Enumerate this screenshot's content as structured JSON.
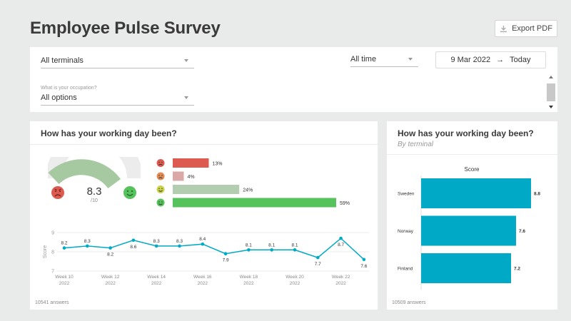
{
  "page": {
    "title": "Employee Pulse Survey",
    "export_label": "Export PDF"
  },
  "filters": {
    "terminal": {
      "value": "All terminals"
    },
    "period": {
      "value": "All time"
    },
    "date_range": {
      "from": "9 Mar 2022",
      "arrow": "→",
      "to": "Today"
    },
    "occupation": {
      "label": "What is your occupation?",
      "value": "All options"
    }
  },
  "colors": {
    "accent": "#00aac6",
    "gauge": "#a7c9a2",
    "very_bad": "#dc5a4f",
    "bad": "#dba8a8",
    "good": "#b3cdb1",
    "very_good": "#56c25b"
  },
  "left_card": {
    "title": "How has your working day been?",
    "gauge": {
      "score": "8.3",
      "max_label": "/10",
      "score_value": 8.3,
      "max_value": 10
    },
    "distribution": [
      {
        "icon": "very-unhappy-face-icon",
        "label": "13%",
        "percent": 13,
        "color": "#dc5a4f"
      },
      {
        "icon": "unhappy-face-icon",
        "label": "4%",
        "percent": 4,
        "color": "#dba8a8"
      },
      {
        "icon": "happy-face-icon",
        "label": "24%",
        "percent": 24,
        "color": "#b3cdb1"
      },
      {
        "icon": "very-happy-face-icon",
        "label": "59%",
        "percent": 59,
        "color": "#56c25b"
      }
    ],
    "answers": "10541 answers"
  },
  "right_card": {
    "title": "How has your working day been?",
    "subtitle": "By terminal",
    "answers": "10509 answers"
  },
  "chart_data": [
    {
      "type": "line",
      "ylabel": "Score",
      "ylim": [
        7,
        9
      ],
      "yticks": [
        "7",
        "8",
        "9"
      ],
      "values": [
        8.2,
        8.3,
        8.2,
        8.6,
        8.3,
        8.3,
        8.4,
        7.9,
        8.1,
        8.1,
        8.1,
        7.7,
        8.7,
        7.6
      ],
      "xtick_labels": [
        {
          "week": "Week 10",
          "year": "2022",
          "index": 0
        },
        {
          "week": "Week 12",
          "year": "2022",
          "index": 2
        },
        {
          "week": "Week 14",
          "year": "2022",
          "index": 4
        },
        {
          "week": "Week 16",
          "year": "2022",
          "index": 6
        },
        {
          "week": "Week 18",
          "year": "2022",
          "index": 8
        },
        {
          "week": "Week 20",
          "year": "2022",
          "index": 10
        },
        {
          "week": "Week 22",
          "year": "2022",
          "index": 12
        }
      ]
    },
    {
      "type": "bar",
      "orientation": "horizontal",
      "title": "Score",
      "categories": [
        "Sweden",
        "Norway",
        "Finland"
      ],
      "values": [
        8.8,
        7.6,
        7.2
      ],
      "xlim": [
        0,
        10
      ]
    }
  ]
}
